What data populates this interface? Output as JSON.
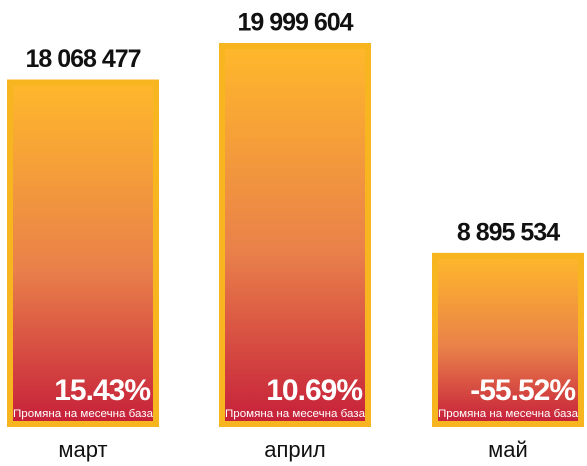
{
  "chart_data": {
    "type": "bar",
    "categories": [
      "март",
      "април",
      "май"
    ],
    "values": [
      18068477,
      19999604,
      8895534
    ],
    "value_labels": [
      "18 068 477",
      "19 999 604",
      "8 895 534"
    ],
    "change_labels": [
      "15.43%",
      "10.69%",
      "-55.52%"
    ],
    "change_note": "Промяна на месечна база",
    "color": "#f7b520",
    "ylim": [
      0,
      20000000
    ]
  }
}
